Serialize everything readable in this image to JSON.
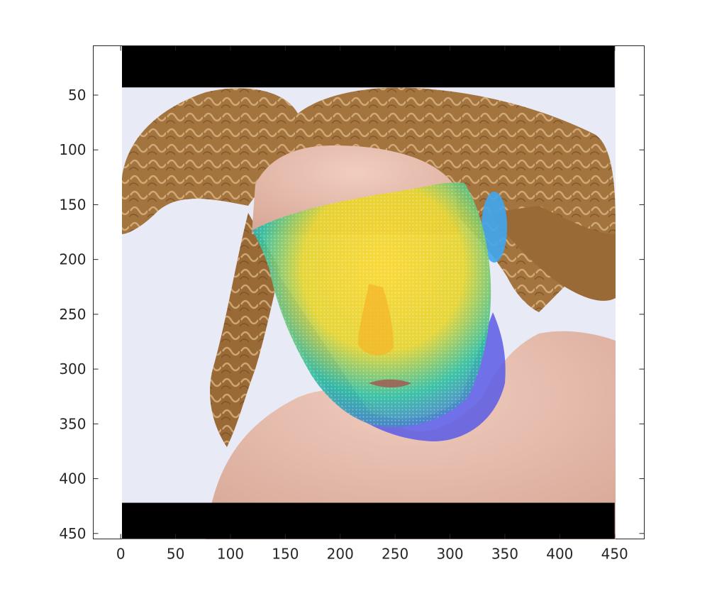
{
  "chart_data": {
    "type": "image",
    "title": "",
    "xlabel": "",
    "ylabel": "",
    "xlim": [
      -25,
      477
    ],
    "ylim": [
      5,
      455
    ],
    "y_reversed": true,
    "x_ticks": [
      0,
      50,
      100,
      150,
      200,
      250,
      300,
      350,
      400,
      450
    ],
    "y_ticks": [
      50,
      100,
      150,
      200,
      250,
      300,
      350,
      400,
      450
    ],
    "x_tick_labels": [
      "0",
      "50",
      "100",
      "150",
      "200",
      "250",
      "300",
      "350",
      "400",
      "450"
    ],
    "y_tick_labels": [
      "50",
      "100",
      "150",
      "200",
      "250",
      "300",
      "350",
      "400",
      "450"
    ],
    "image_extent": {
      "x": [
        0,
        450
      ],
      "y": [
        5,
        455
      ]
    },
    "letterbox_bands": [
      {
        "y_from": 5,
        "y_to": 43
      },
      {
        "y_from": 422,
        "y_to": 455
      }
    ],
    "colors": {
      "axes": "#262626",
      "band": "#000000",
      "background": "#e8eaf5",
      "hair": "#a4743f",
      "skin": "#e8bfb0",
      "mesh_high": "#fcd72b",
      "mesh_mid": "#2fbfa0",
      "mesh_low": "#5a5ae6"
    },
    "photo_icon": "face-photo-with-3d-mesh-overlay"
  }
}
